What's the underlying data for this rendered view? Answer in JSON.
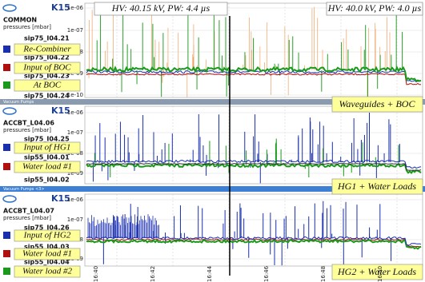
{
  "header": {
    "left_info": "HV: 40.15 kV, PW: 4.4 µs",
    "right_info": "HV: 40.0 kV, PW: 4.0 µs"
  },
  "panels": [
    {
      "logo": "K15",
      "group": "COMMON",
      "unit": "pressures [mbar]",
      "y_labels": [
        "1e-06",
        "1e-07",
        "1e-08",
        "1e-09",
        "1e-10"
      ],
      "channels": [
        "sip75_I04.21",
        "sip75_I04.22",
        "sip75_I04.23",
        "sip75_I04.24"
      ],
      "notes": [
        "Re-Combiner",
        "Input of BOC",
        "At BOC"
      ],
      "caption": "Waveguides + BOC",
      "bar": "Vacuum Pumps"
    },
    {
      "logo": "K15",
      "group": "ACCBT_L04.06",
      "unit": "pressures [mbar]",
      "y_labels": [
        "1e-06",
        "1e-07",
        "1e-08",
        "1e-09"
      ],
      "channels": [
        "sip75_I04.25",
        "sip55_I04.01",
        "sip55_I04.02"
      ],
      "notes": [
        "Input of HG1",
        "Water load #1"
      ],
      "caption": "HG1 + Water Loads",
      "bar": "Vacuum Pumps <3>"
    },
    {
      "logo": "K15",
      "group": "ACCBT_L04.07",
      "unit": "pressures [mbar]",
      "y_labels": [
        "1e-06",
        "1e-07",
        "1e-08",
        "1e-09"
      ],
      "channels": [
        "sip75_I04.26",
        "sip55_I04.03",
        "sip55_I04.04"
      ],
      "notes": [
        "Input of HG2",
        "Water load #1",
        "Water load #2"
      ],
      "caption": "HG2 + Water Loads"
    }
  ],
  "time_labels": [
    "16:40",
    "16:42",
    "16:44",
    "16:46",
    "16:48",
    "16:50"
  ]
}
